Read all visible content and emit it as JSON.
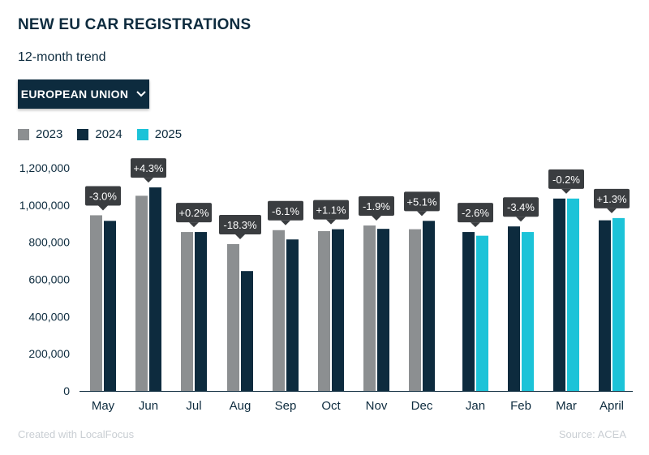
{
  "header": {
    "title": "NEW EU CAR REGISTRATIONS",
    "subtitle": "12-month trend"
  },
  "dropdown": {
    "label": "EUROPEAN UNION",
    "icon": "chevron-down-icon"
  },
  "colors": {
    "2023": "#8c8f91",
    "2024": "#0d2b3e",
    "2025": "#1cc3d8",
    "bubble": "#3a3d40"
  },
  "footer": {
    "credit": "Created with LocalFocus",
    "source": "Source:  ACEA"
  },
  "chart_data": {
    "type": "bar",
    "legend": [
      "2023",
      "2024",
      "2025"
    ],
    "legend_position": "top-left",
    "ylim": [
      0,
      1200000
    ],
    "yticks": [
      "0",
      "200,000",
      "400,000",
      "600,000",
      "800,000",
      "1,000,000",
      "1,200,000"
    ],
    "yticks_values": [
      0,
      200000,
      400000,
      600000,
      800000,
      1000000,
      1200000
    ],
    "grid": false,
    "categories": [
      "May",
      "Jun",
      "Jul",
      "Aug",
      "Sep",
      "Oct",
      "Nov",
      "Dec",
      "Jan",
      "Feb",
      "Mar",
      "April"
    ],
    "groups": [
      {
        "category": "May",
        "series": [
          "2023",
          "2024"
        ],
        "values": [
          945000,
          915000
        ],
        "change": "-3.0%"
      },
      {
        "category": "Jun",
        "series": [
          "2023",
          "2024"
        ],
        "values": [
          1050000,
          1095000
        ],
        "change": "+4.3%"
      },
      {
        "category": "Jul",
        "series": [
          "2023",
          "2024"
        ],
        "values": [
          855000,
          855000
        ],
        "change": "+0.2%"
      },
      {
        "category": "Aug",
        "series": [
          "2023",
          "2024"
        ],
        "values": [
          790000,
          645000
        ],
        "change": "-18.3%"
      },
      {
        "category": "Sep",
        "series": [
          "2023",
          "2024"
        ],
        "values": [
          865000,
          815000
        ],
        "change": "-6.1%"
      },
      {
        "category": "Oct",
        "series": [
          "2023",
          "2024"
        ],
        "values": [
          860000,
          870000
        ],
        "change": "+1.1%"
      },
      {
        "category": "Nov",
        "series": [
          "2023",
          "2024"
        ],
        "values": [
          890000,
          872000
        ],
        "change": "-1.9%"
      },
      {
        "category": "Dec",
        "series": [
          "2023",
          "2024"
        ],
        "values": [
          870000,
          915000
        ],
        "change": "+5.1%"
      },
      {
        "category": "Jan",
        "series": [
          "2024",
          "2025"
        ],
        "values": [
          855000,
          835000
        ],
        "change": "-2.6%"
      },
      {
        "category": "Feb",
        "series": [
          "2024",
          "2025"
        ],
        "values": [
          885000,
          855000
        ],
        "change": "-3.4%"
      },
      {
        "category": "Mar",
        "series": [
          "2024",
          "2025"
        ],
        "values": [
          1035000,
          1035000
        ],
        "change": "-0.2%"
      },
      {
        "category": "April",
        "series": [
          "2024",
          "2025"
        ],
        "values": [
          918000,
          930000
        ],
        "change": "+1.3%"
      }
    ]
  }
}
